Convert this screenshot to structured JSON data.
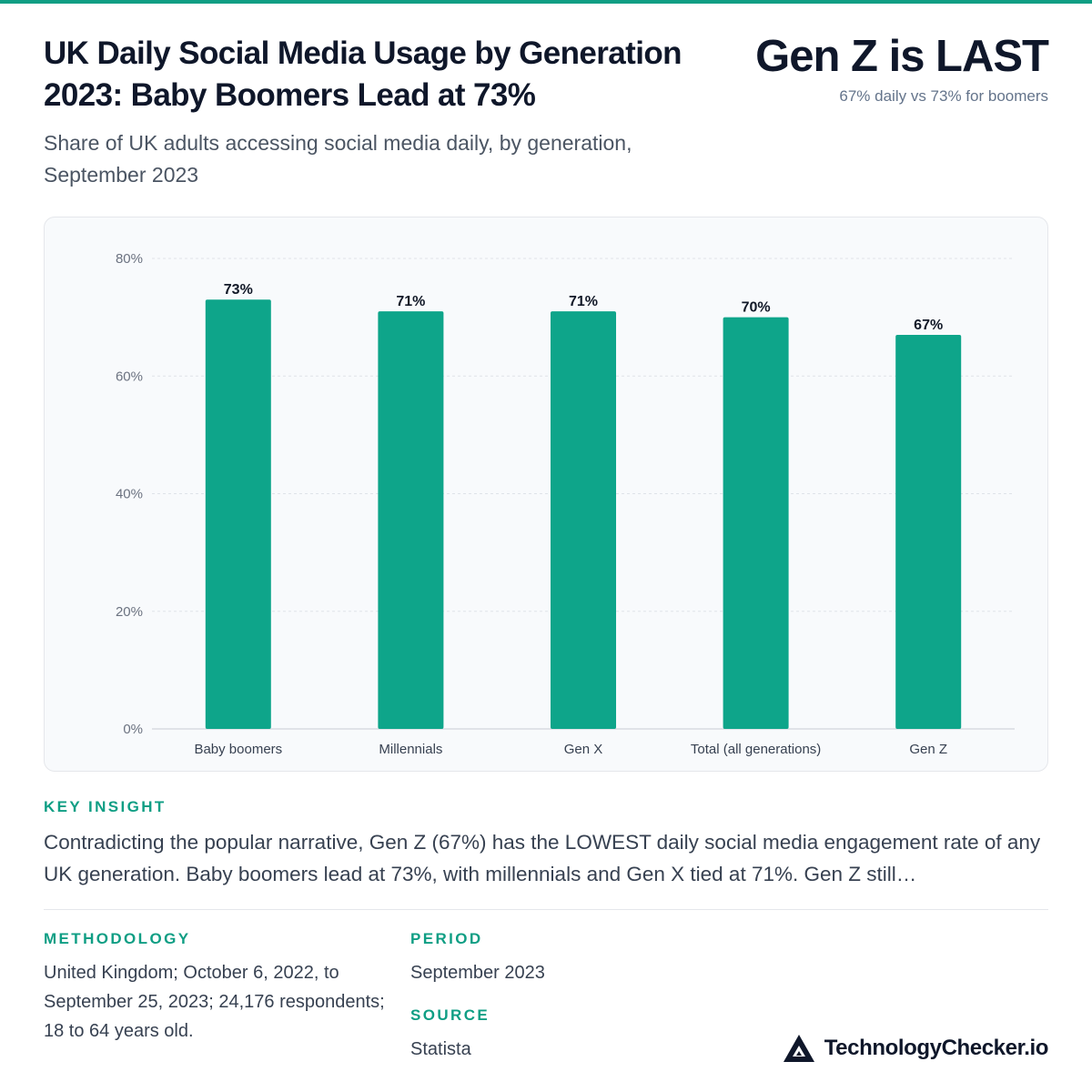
{
  "header": {
    "title": "UK Daily Social Media Usage by Generation 2023: Baby Boomers Lead at 73%",
    "headline": "Gen Z is LAST",
    "headline_sub": "67% daily vs 73% for boomers",
    "subtitle": "Share of UK adults accessing social media daily, by generation, September 2023"
  },
  "chart_data": {
    "type": "bar",
    "categories": [
      "Baby boomers",
      "Millennials",
      "Gen X",
      "Total (all generations)",
      "Gen Z"
    ],
    "values": [
      73,
      71,
      71,
      70,
      67
    ],
    "value_labels": [
      "73%",
      "71%",
      "71%",
      "70%",
      "67%"
    ],
    "yticks": [
      "0%",
      "20%",
      "40%",
      "60%",
      "80%"
    ],
    "ylim": [
      0,
      80
    ],
    "grid": true,
    "bar_color": "#0ea58a"
  },
  "insight": {
    "label": "KEY INSIGHT",
    "text": "Contradicting the popular narrative, Gen Z (67%) has the LOWEST daily social media engagement rate of any UK generation. Baby boomers lead at 73%, with millennials and Gen X tied at 71%. Gen Z still…"
  },
  "methodology": {
    "label": "METHODOLOGY",
    "text": "United Kingdom; October 6, 2022, to September 25, 2023; 24,176 respondents; 18 to 64 years old."
  },
  "period": {
    "label": "PERIOD",
    "text": "September 2023"
  },
  "source": {
    "label": "SOURCE",
    "text": "Statista"
  },
  "brand": {
    "name": "TechnologyChecker.io",
    "logo_icon": "triangle-logo-icon"
  },
  "colors": {
    "accent": "#0f9e84",
    "bar": "#0ea58a",
    "text_dark": "#0f172a"
  }
}
